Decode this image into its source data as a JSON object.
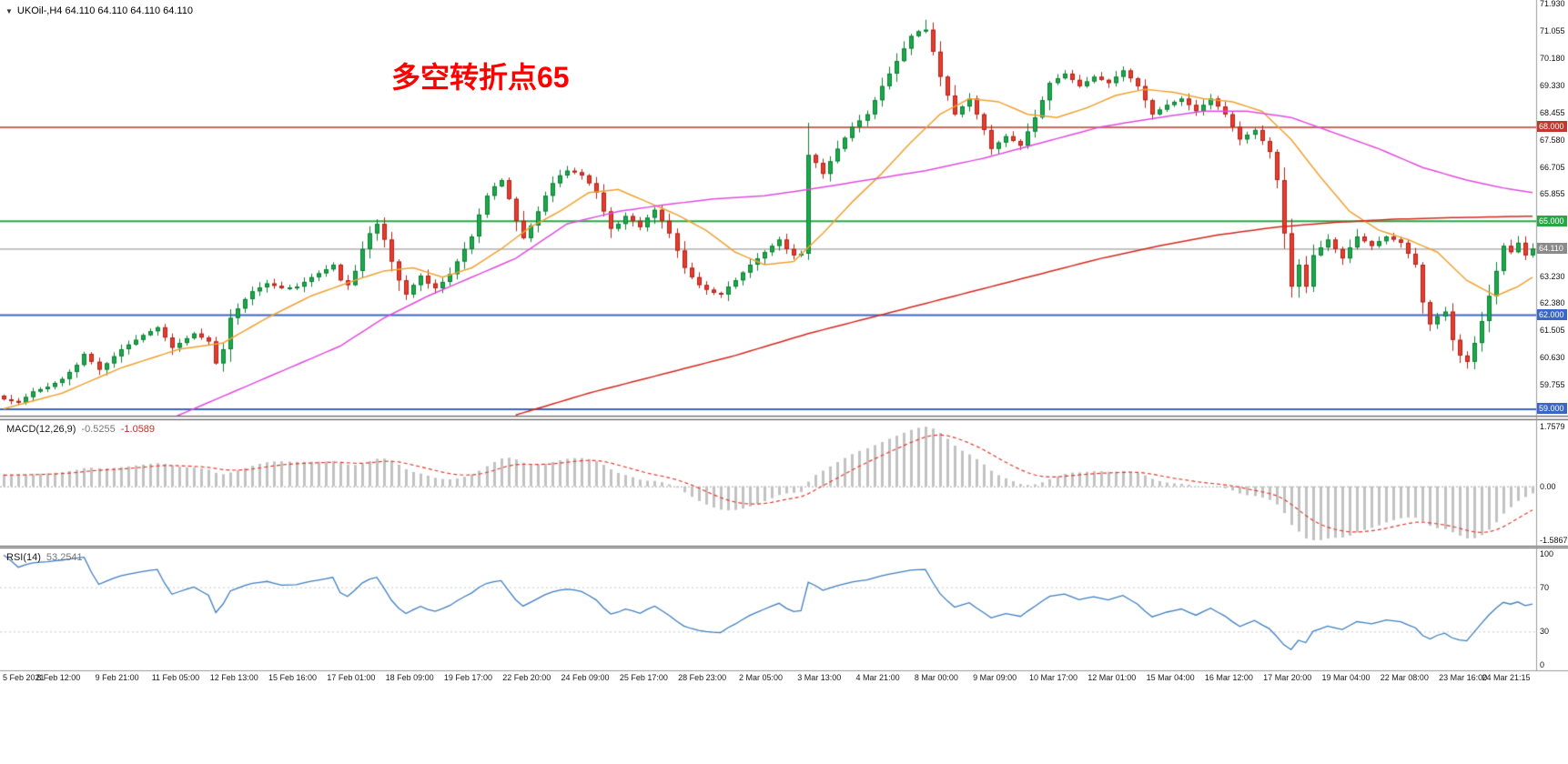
{
  "header": {
    "text": "UKOil-,H4 64.110 64.110 64.110 64.110",
    "collapse_icon": "▼"
  },
  "annotation": {
    "text": "多空转折点65",
    "color": "#ff0000"
  },
  "chart_data": {
    "type": "candlestick",
    "symbol": "UKOil-",
    "timeframe": "H4",
    "num_bars": 210,
    "price_range": [
      58.78,
      72.05
    ],
    "current_price": 64.11,
    "current_price_color": "#8a8a8a",
    "colors": {
      "up": "#1ba94c",
      "up_border": "#0d7e35",
      "down": "#e83b2e",
      "down_border": "#b1241a",
      "background": "#ffffff"
    },
    "close_waypoints": [
      [
        0,
        59.3
      ],
      [
        2,
        59.2
      ],
      [
        4,
        59.55
      ],
      [
        6,
        59.7
      ],
      [
        8,
        59.95
      ],
      [
        10,
        60.4
      ],
      [
        11,
        60.75
      ],
      [
        13,
        60.25
      ],
      [
        14,
        60.45
      ],
      [
        16,
        60.9
      ],
      [
        18,
        61.2
      ],
      [
        19,
        61.35
      ],
      [
        21,
        61.6
      ],
      [
        23,
        60.95
      ],
      [
        24,
        61.1
      ],
      [
        26,
        61.4
      ],
      [
        28,
        61.15
      ],
      [
        29,
        60.45
      ],
      [
        30,
        60.9
      ],
      [
        31,
        61.9
      ],
      [
        33,
        62.5
      ],
      [
        34,
        62.75
      ],
      [
        36,
        63.0
      ],
      [
        38,
        62.85
      ],
      [
        40,
        62.9
      ],
      [
        42,
        63.2
      ],
      [
        44,
        63.45
      ],
      [
        45,
        63.6
      ],
      [
        46,
        63.1
      ],
      [
        47,
        62.95
      ],
      [
        48,
        63.4
      ],
      [
        49,
        64.1
      ],
      [
        50,
        64.6
      ],
      [
        51,
        64.9
      ],
      [
        52,
        64.4
      ],
      [
        53,
        63.7
      ],
      [
        54,
        63.1
      ],
      [
        55,
        62.65
      ],
      [
        56,
        62.95
      ],
      [
        57,
        63.25
      ],
      [
        58,
        63.0
      ],
      [
        59,
        62.85
      ],
      [
        60,
        63.05
      ],
      [
        61,
        63.3
      ],
      [
        62,
        63.7
      ],
      [
        63,
        64.1
      ],
      [
        64,
        64.5
      ],
      [
        65,
        65.2
      ],
      [
        66,
        65.8
      ],
      [
        67,
        66.1
      ],
      [
        68,
        66.3
      ],
      [
        69,
        65.7
      ],
      [
        70,
        65.0
      ],
      [
        71,
        64.45
      ],
      [
        72,
        64.85
      ],
      [
        73,
        65.3
      ],
      [
        74,
        65.8
      ],
      [
        75,
        66.2
      ],
      [
        76,
        66.45
      ],
      [
        77,
        66.6
      ],
      [
        78,
        66.55
      ],
      [
        79,
        66.45
      ],
      [
        80,
        66.2
      ],
      [
        81,
        65.9
      ],
      [
        82,
        65.3
      ],
      [
        83,
        64.75
      ],
      [
        84,
        64.9
      ],
      [
        85,
        65.15
      ],
      [
        86,
        65.0
      ],
      [
        87,
        64.8
      ],
      [
        88,
        65.1
      ],
      [
        89,
        65.35
      ],
      [
        90,
        65.0
      ],
      [
        91,
        64.6
      ],
      [
        92,
        64.05
      ],
      [
        93,
        63.5
      ],
      [
        94,
        63.2
      ],
      [
        95,
        62.95
      ],
      [
        96,
        62.8
      ],
      [
        97,
        62.7
      ],
      [
        98,
        62.65
      ],
      [
        99,
        62.9
      ],
      [
        100,
        63.1
      ],
      [
        101,
        63.35
      ],
      [
        102,
        63.6
      ],
      [
        103,
        63.8
      ],
      [
        104,
        64.0
      ],
      [
        105,
        64.2
      ],
      [
        106,
        64.4
      ],
      [
        107,
        64.1
      ],
      [
        108,
        63.9
      ],
      [
        109,
        63.95
      ],
      [
        110,
        67.1
      ],
      [
        111,
        66.85
      ],
      [
        112,
        66.5
      ],
      [
        113,
        66.9
      ],
      [
        114,
        67.3
      ],
      [
        115,
        67.65
      ],
      [
        116,
        68.0
      ],
      [
        117,
        68.2
      ],
      [
        118,
        68.4
      ],
      [
        119,
        68.85
      ],
      [
        120,
        69.3
      ],
      [
        121,
        69.7
      ],
      [
        122,
        70.1
      ],
      [
        123,
        70.5
      ],
      [
        124,
        70.9
      ],
      [
        125,
        71.05
      ],
      [
        126,
        71.1
      ],
      [
        127,
        70.4
      ],
      [
        128,
        69.6
      ],
      [
        129,
        69.0
      ],
      [
        130,
        68.4
      ],
      [
        131,
        68.65
      ],
      [
        132,
        68.9
      ],
      [
        133,
        68.4
      ],
      [
        134,
        67.9
      ],
      [
        135,
        67.3
      ],
      [
        136,
        67.5
      ],
      [
        137,
        67.7
      ],
      [
        138,
        67.55
      ],
      [
        139,
        67.4
      ],
      [
        140,
        67.85
      ],
      [
        141,
        68.3
      ],
      [
        142,
        68.85
      ],
      [
        143,
        69.4
      ],
      [
        144,
        69.55
      ],
      [
        145,
        69.7
      ],
      [
        146,
        69.5
      ],
      [
        147,
        69.3
      ],
      [
        148,
        69.45
      ],
      [
        149,
        69.6
      ],
      [
        150,
        69.5
      ],
      [
        151,
        69.4
      ],
      [
        152,
        69.6
      ],
      [
        153,
        69.8
      ],
      [
        154,
        69.55
      ],
      [
        155,
        69.3
      ],
      [
        156,
        68.85
      ],
      [
        157,
        68.4
      ],
      [
        158,
        68.55
      ],
      [
        159,
        68.7
      ],
      [
        160,
        68.8
      ],
      [
        161,
        68.9
      ],
      [
        162,
        68.7
      ],
      [
        163,
        68.5
      ],
      [
        164,
        68.7
      ],
      [
        165,
        68.9
      ],
      [
        166,
        68.65
      ],
      [
        167,
        68.4
      ],
      [
        168,
        68.0
      ],
      [
        169,
        67.6
      ],
      [
        170,
        67.75
      ],
      [
        171,
        67.9
      ],
      [
        172,
        67.55
      ],
      [
        173,
        67.2
      ],
      [
        174,
        66.3
      ],
      [
        175,
        64.6
      ],
      [
        176,
        62.9
      ],
      [
        177,
        63.6
      ],
      [
        178,
        62.9
      ],
      [
        179,
        63.9
      ],
      [
        180,
        64.15
      ],
      [
        181,
        64.4
      ],
      [
        182,
        64.1
      ],
      [
        183,
        63.8
      ],
      [
        184,
        64.15
      ],
      [
        185,
        64.5
      ],
      [
        186,
        64.35
      ],
      [
        187,
        64.2
      ],
      [
        188,
        64.35
      ],
      [
        189,
        64.5
      ],
      [
        190,
        64.4
      ],
      [
        191,
        64.3
      ],
      [
        192,
        63.95
      ],
      [
        193,
        63.6
      ],
      [
        194,
        62.4
      ],
      [
        195,
        61.7
      ],
      [
        196,
        61.95
      ],
      [
        197,
        62.1
      ],
      [
        198,
        61.2
      ],
      [
        199,
        60.7
      ],
      [
        200,
        60.5
      ],
      [
        201,
        61.1
      ],
      [
        202,
        61.8
      ],
      [
        203,
        62.6
      ],
      [
        204,
        63.4
      ],
      [
        205,
        64.2
      ],
      [
        206,
        64.0
      ],
      [
        207,
        64.3
      ],
      [
        208,
        63.9
      ],
      [
        209,
        64.11
      ]
    ],
    "wick_overrides": {
      "51": {
        "hi": 65.05
      },
      "110": {
        "lo": 63.75
      },
      "126": {
        "hi": 71.42
      },
      "176": {
        "lo": 62.55
      },
      "200": {
        "lo": 60.28
      }
    },
    "ma_lines": [
      {
        "name": "ma-fast-orange",
        "color": "#f0a232",
        "waypoints": [
          [
            0,
            59.0
          ],
          [
            8,
            59.5
          ],
          [
            16,
            60.3
          ],
          [
            24,
            60.9
          ],
          [
            30,
            61.1
          ],
          [
            36,
            61.9
          ],
          [
            42,
            62.6
          ],
          [
            48,
            63.1
          ],
          [
            52,
            63.4
          ],
          [
            56,
            63.5
          ],
          [
            60,
            63.2
          ],
          [
            64,
            63.5
          ],
          [
            68,
            64.1
          ],
          [
            72,
            64.8
          ],
          [
            76,
            65.3
          ],
          [
            80,
            65.9
          ],
          [
            84,
            66.0
          ],
          [
            88,
            65.6
          ],
          [
            92,
            65.2
          ],
          [
            96,
            64.7
          ],
          [
            100,
            64.0
          ],
          [
            104,
            63.6
          ],
          [
            108,
            63.7
          ],
          [
            112,
            64.6
          ],
          [
            116,
            65.6
          ],
          [
            120,
            66.5
          ],
          [
            124,
            67.5
          ],
          [
            128,
            68.4
          ],
          [
            132,
            68.9
          ],
          [
            136,
            68.8
          ],
          [
            140,
            68.4
          ],
          [
            144,
            68.3
          ],
          [
            148,
            68.6
          ],
          [
            152,
            69.0
          ],
          [
            156,
            69.2
          ],
          [
            160,
            69.1
          ],
          [
            164,
            68.9
          ],
          [
            168,
            68.8
          ],
          [
            172,
            68.5
          ],
          [
            176,
            67.6
          ],
          [
            180,
            66.4
          ],
          [
            184,
            65.3
          ],
          [
            188,
            64.7
          ],
          [
            192,
            64.4
          ],
          [
            196,
            64.0
          ],
          [
            200,
            63.1
          ],
          [
            204,
            62.6
          ],
          [
            207,
            62.9
          ],
          [
            209,
            63.2
          ]
        ]
      },
      {
        "name": "ma-medium-magenta",
        "color": "#e14ce1",
        "waypoints": [
          [
            22,
            58.6
          ],
          [
            30,
            59.4
          ],
          [
            38,
            60.2
          ],
          [
            46,
            61.0
          ],
          [
            52,
            61.9
          ],
          [
            58,
            62.6
          ],
          [
            64,
            63.2
          ],
          [
            70,
            63.8
          ],
          [
            77,
            64.9
          ],
          [
            84,
            65.3
          ],
          [
            90,
            65.5
          ],
          [
            97,
            65.7
          ],
          [
            104,
            65.8
          ],
          [
            110,
            66.0
          ],
          [
            118,
            66.3
          ],
          [
            126,
            66.6
          ],
          [
            134,
            67.0
          ],
          [
            142,
            67.5
          ],
          [
            150,
            68.0
          ],
          [
            158,
            68.3
          ],
          [
            164,
            68.5
          ],
          [
            170,
            68.5
          ],
          [
            176,
            68.3
          ],
          [
            182,
            67.8
          ],
          [
            188,
            67.3
          ],
          [
            194,
            66.7
          ],
          [
            200,
            66.3
          ],
          [
            205,
            66.05
          ],
          [
            209,
            65.9
          ]
        ]
      },
      {
        "name": "ma-slow-red",
        "color": "#d4281f",
        "waypoints": [
          [
            70,
            58.8
          ],
          [
            80,
            59.5
          ],
          [
            90,
            60.1
          ],
          [
            100,
            60.7
          ],
          [
            110,
            61.4
          ],
          [
            120,
            62.0
          ],
          [
            130,
            62.6
          ],
          [
            140,
            63.2
          ],
          [
            150,
            63.8
          ],
          [
            158,
            64.2
          ],
          [
            166,
            64.55
          ],
          [
            174,
            64.8
          ],
          [
            182,
            64.95
          ],
          [
            190,
            65.05
          ],
          [
            198,
            65.1
          ],
          [
            209,
            65.15
          ]
        ]
      }
    ],
    "hlines": [
      {
        "value": 68.0,
        "color": "#c0392b",
        "width": 1.5
      },
      {
        "value": 65.0,
        "color": "#27a844",
        "width": 2
      },
      {
        "value": 62.0,
        "color": "#3a66c8",
        "width": 2
      },
      {
        "value": 59.0,
        "color": "#3a66c8",
        "width": 2
      }
    ],
    "y_axis_labels": [
      {
        "text": "71.930",
        "value": 71.93
      },
      {
        "text": "71.055",
        "value": 71.055
      },
      {
        "text": "70.180",
        "value": 70.18
      },
      {
        "text": "69.330",
        "value": 69.33
      },
      {
        "text": "68.455",
        "value": 68.455
      },
      {
        "text": "67.580",
        "value": 67.58
      },
      {
        "text": "66.705",
        "value": 66.705
      },
      {
        "text": "65.855",
        "value": 65.855
      },
      {
        "text": "63.230",
        "value": 63.23
      },
      {
        "text": "62.380",
        "value": 62.38
      },
      {
        "text": "61.505",
        "value": 61.505
      },
      {
        "text": "60.630",
        "value": 60.63
      },
      {
        "text": "59.755",
        "value": 59.755
      }
    ],
    "boxed_labels": [
      {
        "text": "68.000",
        "value": 68.0,
        "color": "#c0392b"
      },
      {
        "text": "65.000",
        "value": 65.0,
        "color": "#27a844"
      },
      {
        "text": "64.110",
        "value": 64.11,
        "color": "#8a8a8a"
      },
      {
        "text": "62.000",
        "value": 62.0,
        "color": "#3a66c8"
      },
      {
        "text": "59.000",
        "value": 59.0,
        "color": "#3a66c8"
      }
    ],
    "x_axis_labels": [
      "5 Feb 2021",
      "8 Feb 12:00",
      "9 Feb 21:00",
      "11 Feb 05:00",
      "12 Feb 13:00",
      "15 Feb 16:00",
      "17 Feb 01:00",
      "18 Feb 09:00",
      "19 Feb 17:00",
      "22 Feb 20:00",
      "24 Feb 09:00",
      "25 Feb 17:00",
      "28 Feb 23:00",
      "2 Mar 05:00",
      "3 Mar 13:00",
      "4 Mar 21:00",
      "8 Mar 00:00",
      "9 Mar 09:00",
      "10 Mar 17:00",
      "12 Mar 01:00",
      "15 Mar 04:00",
      "16 Mar 12:00",
      "17 Mar 20:00",
      "19 Mar 04:00",
      "22 Mar 08:00",
      "23 Mar 16:00",
      "24 Mar 21:15"
    ],
    "indicators": {
      "macd": {
        "label": "MACD(12,26,9)",
        "main_value": "-0.5255",
        "signal_value": "-1.0589",
        "axis_labels": [
          {
            "text": "1.7579",
            "value": 1.7579
          },
          {
            "text": "0.00",
            "value": 0
          },
          {
            "text": "-1.5867",
            "value": -1.5867
          }
        ],
        "max": 1.7579,
        "min": -1.5867,
        "histogram_color": "#c2c2c2",
        "signal_color": "#e23a2e"
      },
      "rsi": {
        "label": "RSI(14)",
        "value": "53.2541",
        "axis_labels": [
          {
            "text": "100",
            "value": 100
          },
          {
            "text": "70",
            "value": 70
          },
          {
            "text": "30",
            "value": 30
          },
          {
            "text": "0",
            "value": 0
          }
        ],
        "levels": [
          70,
          30
        ],
        "line_color": "#3f7fc1",
        "level_color": "#c8c8c8"
      }
    }
  }
}
